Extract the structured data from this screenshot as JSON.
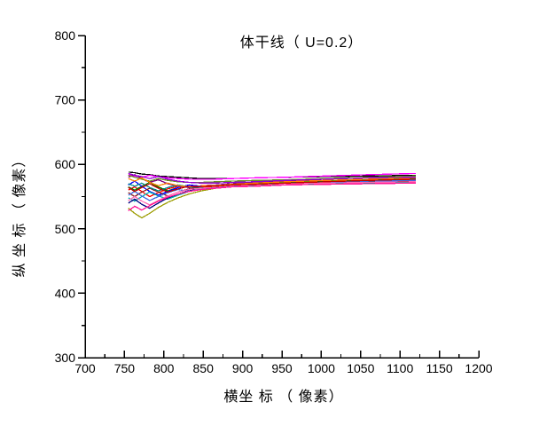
{
  "window": {
    "background": "#ffffff",
    "text_color": "#000000"
  },
  "chart_data": {
    "type": "line",
    "title": "体干线（ U=0.2）",
    "xlabel": "横坐 标 （ 像素）",
    "ylabel": "纵 坐 标 （ 像素）",
    "xlim": [
      700,
      1200
    ],
    "ylim": [
      300,
      800
    ],
    "x_major_ticks": [
      700,
      750,
      800,
      850,
      900,
      950,
      1000,
      1050,
      1100,
      1150,
      1200
    ],
    "x_minor_ticks": [
      725,
      775,
      825,
      875,
      925,
      975,
      1025,
      1075,
      1125,
      1175
    ],
    "y_major_ticks": [
      300,
      400,
      500,
      600,
      700,
      800
    ],
    "y_minor_ticks": [
      350,
      450,
      550,
      650,
      750
    ],
    "grid": false,
    "legend": "none",
    "axis_color": "#000000",
    "tick_direction": {
      "x": "in",
      "y": "out"
    },
    "x": [
      755,
      763,
      772,
      782,
      793,
      805,
      818,
      832,
      848,
      866,
      886,
      915,
      955,
      1005,
      1060,
      1120
    ],
    "series": [
      {
        "name": "black",
        "color": "#000000",
        "y": [
          588,
          587,
          585,
          584,
          582,
          581,
          580,
          579,
          578,
          578,
          578,
          579,
          580,
          581,
          582,
          583
        ]
      },
      {
        "name": "red",
        "color": "#FF0000",
        "y": [
          560,
          565,
          558,
          550,
          556,
          562,
          566,
          564,
          567,
          568,
          569,
          570,
          572,
          574,
          575,
          576
        ]
      },
      {
        "name": "green",
        "color": "#008000",
        "y": [
          565,
          560,
          566,
          572,
          565,
          559,
          564,
          568,
          566,
          567,
          568,
          570,
          572,
          574,
          576,
          578
        ]
      },
      {
        "name": "blue",
        "color": "#0000FF",
        "y": [
          568,
          574,
          566,
          558,
          552,
          558,
          564,
          568,
          566,
          567,
          568,
          569,
          570,
          572,
          573,
          574
        ]
      },
      {
        "name": "cyan",
        "color": "#00AEAE",
        "y": [
          548,
          543,
          550,
          557,
          551,
          546,
          552,
          558,
          562,
          565,
          567,
          568,
          570,
          571,
          572,
          573
        ]
      },
      {
        "name": "magenta",
        "color": "#FF00FF",
        "y": [
          584,
          582,
          580,
          583,
          581,
          579,
          578,
          577,
          577,
          577,
          578,
          579,
          580,
          582,
          584,
          586
        ]
      },
      {
        "name": "dark-yellow",
        "color": "#9C9C00",
        "y": [
          532,
          524,
          517,
          524,
          533,
          541,
          548,
          554,
          559,
          563,
          566,
          568,
          570,
          573,
          575,
          577
        ]
      },
      {
        "name": "navy",
        "color": "#000080",
        "y": [
          540,
          546,
          538,
          532,
          540,
          548,
          554,
          559,
          562,
          564,
          566,
          568,
          570,
          572,
          574,
          575
        ]
      },
      {
        "name": "purple",
        "color": "#800080",
        "y": [
          580,
          584,
          578,
          572,
          576,
          570,
          566,
          564,
          566,
          568,
          570,
          572,
          574,
          577,
          579,
          581
        ]
      },
      {
        "name": "wine",
        "color": "#8B2323",
        "y": [
          556,
          550,
          557,
          563,
          557,
          551,
          557,
          562,
          565,
          566,
          567,
          569,
          570,
          572,
          573,
          574
        ]
      },
      {
        "name": "olive",
        "color": "#6B8E23",
        "y": [
          583,
          580,
          577,
          574,
          578,
          575,
          573,
          572,
          572,
          573,
          574,
          575,
          576,
          578,
          580,
          582
        ]
      },
      {
        "name": "dark-cyan",
        "color": "#008B8B",
        "y": [
          570,
          566,
          571,
          564,
          559,
          564,
          568,
          565,
          564,
          565,
          566,
          567,
          568,
          570,
          571,
          572
        ]
      },
      {
        "name": "royal-blue",
        "color": "#4169E1",
        "y": [
          552,
          558,
          551,
          544,
          550,
          556,
          561,
          558,
          562,
          564,
          566,
          568,
          570,
          572,
          574,
          575
        ]
      },
      {
        "name": "orange",
        "color": "#FF7F00",
        "y": [
          578,
          574,
          579,
          572,
          567,
          571,
          567,
          565,
          566,
          567,
          569,
          571,
          573,
          575,
          577,
          579
        ]
      },
      {
        "name": "violet",
        "color": "#9400D3",
        "y": [
          586,
          583,
          581,
          578,
          581,
          577,
          574,
          572,
          571,
          571,
          572,
          573,
          575,
          577,
          579,
          580
        ]
      },
      {
        "name": "pink",
        "color": "#FF69B4",
        "y": [
          544,
          550,
          543,
          537,
          544,
          551,
          557,
          561,
          563,
          565,
          567,
          568,
          570,
          571,
          572,
          573
        ]
      },
      {
        "name": "dark-red",
        "color": "#C00000",
        "y": [
          564,
          558,
          564,
          570,
          563,
          557,
          562,
          566,
          565,
          566,
          568,
          569,
          571,
          573,
          575,
          577
        ]
      },
      {
        "name": "deep-pink",
        "color": "#FF1493",
        "y": [
          528,
          535,
          529,
          536,
          543,
          549,
          554,
          558,
          561,
          563,
          565,
          566,
          568,
          569,
          570,
          571
        ]
      }
    ]
  }
}
